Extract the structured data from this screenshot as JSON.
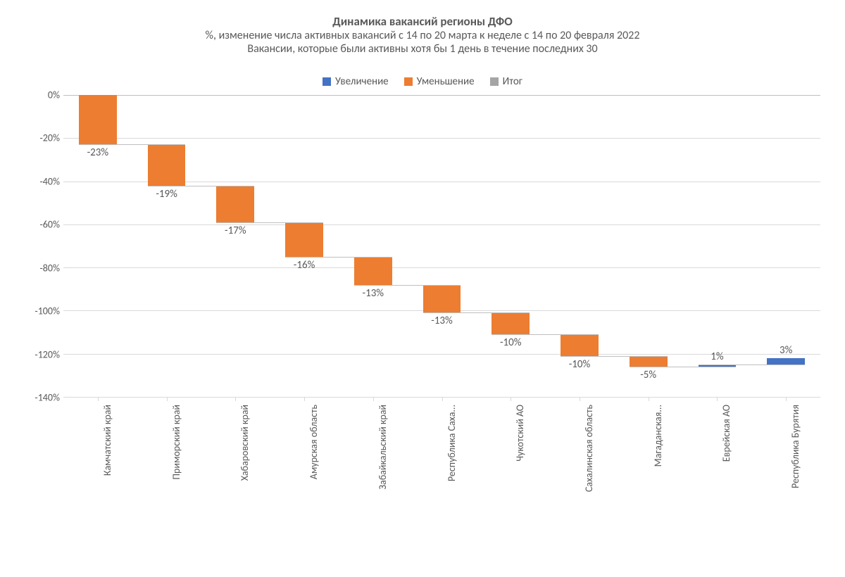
{
  "chart": {
    "type": "waterfall",
    "title": "Динамика вакансий регионы ДФО",
    "subtitle1": "%, изменение числа активных вакансий с 14 по 20 марта к неделе с 14 по 20 февраля 2022",
    "subtitle2": "Вакансии, которые были активны хотя бы 1 день в течение последних 30",
    "title_fontsize": 17,
    "subtitle_fontsize": 16,
    "title_color": "#595959",
    "background_color": "#ffffff",
    "legend": {
      "items": [
        {
          "label": "Увеличение",
          "color": "#4472c4"
        },
        {
          "label": "Уменьшение",
          "color": "#ed7d31"
        },
        {
          "label": "Итог",
          "color": "#a5a5a5"
        }
      ],
      "fontsize": 15
    },
    "y_axis": {
      "min": -140,
      "max": 0,
      "ticks": [
        0,
        -20,
        -40,
        -60,
        -80,
        -100,
        -120,
        -140
      ],
      "tick_labels": [
        "0%",
        "-20%",
        "-40%",
        "-60%",
        "-80%",
        "-100%",
        "-120%",
        "-140%"
      ],
      "label_fontsize": 14,
      "grid_color": "#d9d9d9",
      "zero_line_color": "#bfbfbf"
    },
    "x_axis": {
      "label_fontsize": 14,
      "label_rotation_deg": -90
    },
    "bars": {
      "bar_width_ratio": 0.55,
      "decrease_color": "#ed7d31",
      "increase_color": "#4472c4",
      "connector_color": "#bfbfbf",
      "data_label_fontsize": 15,
      "items": [
        {
          "category": "Камчатский край",
          "value": -23,
          "label": "-23%",
          "type": "decrease"
        },
        {
          "category": "Приморский край",
          "value": -19,
          "label": "-19%",
          "type": "decrease"
        },
        {
          "category": "Хабаровский край",
          "value": -17,
          "label": "-17%",
          "type": "decrease"
        },
        {
          "category": "Амурская область",
          "value": -16,
          "label": "-16%",
          "type": "decrease"
        },
        {
          "category": "Забайкальский край",
          "value": -13,
          "label": "-13%",
          "type": "decrease"
        },
        {
          "category": "Республика Саха...",
          "value": -13,
          "label": "-13%",
          "type": "decrease"
        },
        {
          "category": "Чукотский АО",
          "value": -10,
          "label": "-10%",
          "type": "decrease"
        },
        {
          "category": "Сахалинская область",
          "value": -10,
          "label": "-10%",
          "type": "decrease"
        },
        {
          "category": "Магаданская...",
          "value": -5,
          "label": "-5%",
          "type": "decrease"
        },
        {
          "category": "Еврейская АО",
          "value": 1,
          "label": "1%",
          "type": "increase"
        },
        {
          "category": "Республика Бурятия",
          "value": 3,
          "label": "3%",
          "type": "increase"
        }
      ]
    }
  }
}
